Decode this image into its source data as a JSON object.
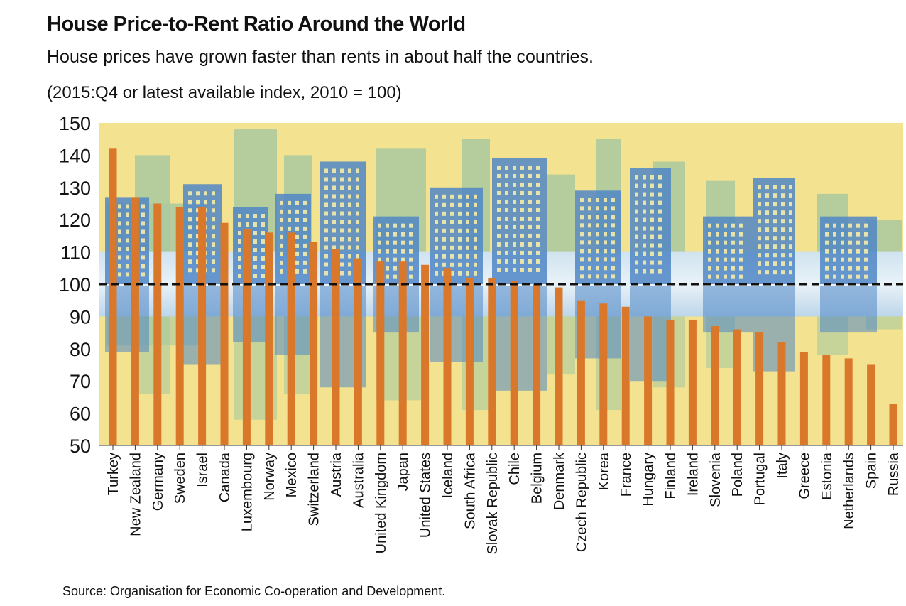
{
  "header": {
    "title": "House Price-to-Rent Ratio Around the World",
    "subtitle": "House prices have grown faster than rents in about half the countries.",
    "note": "(2015:Q4 or latest available index, 2010 = 100)"
  },
  "footer": {
    "source": "Source: Organisation for Economic Co-operation and Development."
  },
  "colors": {
    "background": "#f3e28f",
    "bar": "#d9782a",
    "skyline_back": "#a9c9a0",
    "skyline_front": "#4f86c6",
    "reference_line": "#111111"
  },
  "chart_data": {
    "type": "bar",
    "title": "House Price-to-Rent Ratio Around the World",
    "subtitle": "House prices have grown faster than rents in about half the countries.",
    "xlabel": "",
    "ylabel": "",
    "ylim": [
      50,
      150
    ],
    "yticks": [
      50,
      60,
      70,
      80,
      90,
      100,
      110,
      120,
      130,
      140,
      150
    ],
    "reference_line": 100,
    "grid": false,
    "legend": "none",
    "categories": [
      "Turkey",
      "New Zealand",
      "Germany",
      "Sweden",
      "Israel",
      "Canada",
      "Luxembourg",
      "Norway",
      "Mexico",
      "Switzerland",
      "Austria",
      "Australia",
      "United Kingdom",
      "Japan",
      "United States",
      "Iceland",
      "South Africa",
      "Slovak Republic",
      "Chile",
      "Belgium",
      "Denmark",
      "Czech Republic",
      "Korea",
      "France",
      "Hungary",
      "Finland",
      "Ireland",
      "Slovenia",
      "Poland",
      "Portugal",
      "Italy",
      "Greece",
      "Estonia",
      "Netherlands",
      "Spain",
      "Russia"
    ],
    "values": [
      142,
      127,
      125,
      124,
      124,
      119,
      117,
      116,
      116,
      113,
      111,
      108,
      107,
      107,
      106,
      105,
      102,
      102,
      101,
      100,
      99,
      95,
      94,
      93,
      90,
      89,
      89,
      87,
      86,
      85,
      82,
      79,
      78,
      77,
      75,
      63
    ]
  }
}
